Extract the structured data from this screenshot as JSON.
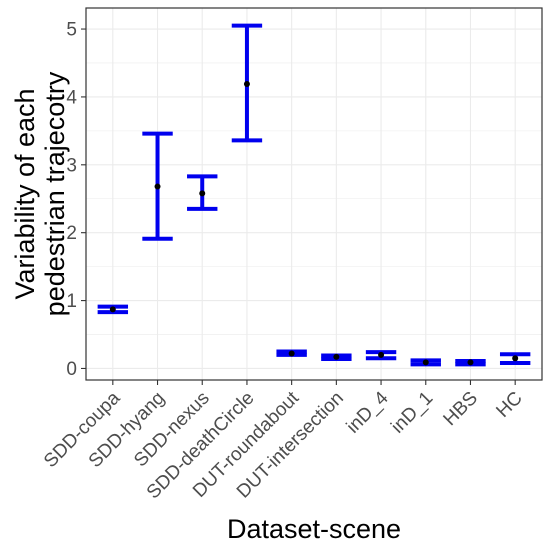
{
  "chart_data": {
    "type": "errorbar",
    "xlabel": "Dataset-scene",
    "ylabel": [
      "Variability of each",
      "pedestrian trajecotry"
    ],
    "categories": [
      "SDD-coupa",
      "SDD-hyang",
      "SDD-nexus",
      "SDD-deathCircle",
      "DUT-roundabout",
      "DUT-intersection",
      "inD_4",
      "inD_1",
      "HBS",
      "HC"
    ],
    "means": [
      0.87,
      2.68,
      2.58,
      4.19,
      0.22,
      0.17,
      0.2,
      0.09,
      0.09,
      0.15
    ],
    "lower": [
      0.83,
      1.91,
      2.35,
      3.36,
      0.2,
      0.14,
      0.15,
      0.06,
      0.06,
      0.08
    ],
    "upper": [
      0.91,
      3.46,
      2.83,
      5.05,
      0.25,
      0.19,
      0.24,
      0.12,
      0.11,
      0.21
    ],
    "ylim": [
      -0.17,
      5.31
    ],
    "yticks": [
      0,
      1,
      2,
      3,
      4,
      5
    ],
    "grid": true,
    "legend": "none",
    "colors": {
      "errorbar": "#0000ee",
      "point": "#000000",
      "grid": "#ebebeb",
      "panel_border": "#333333",
      "tick_text": "#4d4d4d"
    }
  }
}
